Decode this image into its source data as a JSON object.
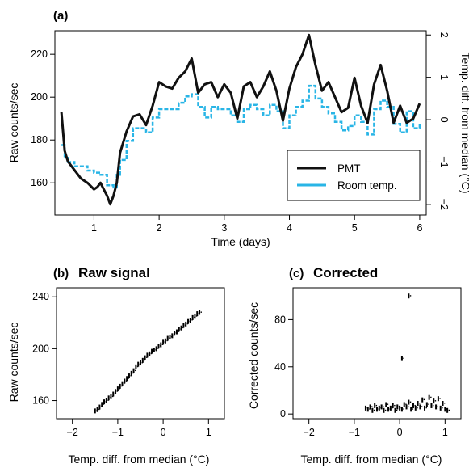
{
  "colors": {
    "pmt": "#111111",
    "room": "#29b5e6"
  },
  "chart_data": [
    {
      "type": "line",
      "panel_label": "(a)",
      "title": "",
      "xlabel": "Time (days)",
      "ylabel": "Raw counts/sec",
      "y2label": "Temp. diff. from median (°C)",
      "xlim": [
        0.4,
        6.1
      ],
      "ylim": [
        145,
        231
      ],
      "y2lim": [
        -2.25,
        2.1
      ],
      "xticks": [
        "1",
        "2",
        "3",
        "4",
        "5",
        "6"
      ],
      "yticks": [
        "160",
        "180",
        "200",
        "220"
      ],
      "y2ticks": [
        "−2",
        "−1",
        "0",
        "1",
        "2"
      ],
      "legend": "bottom-right",
      "series": [
        {
          "name": "PMT",
          "axis": "left",
          "x": [
            0.5,
            0.55,
            0.6,
            0.7,
            0.8,
            0.9,
            1.0,
            1.05,
            1.1,
            1.15,
            1.2,
            1.25,
            1.3,
            1.35,
            1.4,
            1.5,
            1.6,
            1.7,
            1.8,
            1.9,
            2.0,
            2.1,
            2.2,
            2.3,
            2.4,
            2.5,
            2.6,
            2.7,
            2.8,
            2.9,
            3.0,
            3.1,
            3.2,
            3.3,
            3.4,
            3.5,
            3.6,
            3.7,
            3.8,
            3.9,
            4.0,
            4.1,
            4.2,
            4.3,
            4.4,
            4.5,
            4.6,
            4.7,
            4.8,
            4.9,
            5.0,
            5.1,
            5.2,
            5.3,
            5.4,
            5.5,
            5.6,
            5.7,
            5.8,
            5.9,
            6.0
          ],
          "y": [
            193,
            175,
            170,
            166,
            162,
            160,
            157,
            158,
            160,
            157,
            154,
            150,
            154,
            160,
            174,
            184,
            191,
            192,
            187,
            196,
            207,
            205,
            204,
            209,
            212,
            218,
            202,
            206,
            207,
            200,
            206,
            202,
            190,
            205,
            207,
            200,
            205,
            212,
            203,
            189,
            204,
            214,
            220,
            229,
            215,
            203,
            207,
            200,
            193,
            195,
            209,
            196,
            188,
            206,
            215,
            203,
            188,
            196,
            188,
            190,
            197
          ]
        },
        {
          "name": "Room temp.",
          "axis": "right",
          "x": [
            0.5,
            0.55,
            0.6,
            0.7,
            0.8,
            0.9,
            1.0,
            1.1,
            1.2,
            1.3,
            1.35,
            1.4,
            1.5,
            1.6,
            1.7,
            1.8,
            1.9,
            2.0,
            2.1,
            2.2,
            2.3,
            2.4,
            2.5,
            2.6,
            2.7,
            2.8,
            2.9,
            3.0,
            3.1,
            3.2,
            3.3,
            3.4,
            3.5,
            3.6,
            3.7,
            3.8,
            3.9,
            4.0,
            4.1,
            4.2,
            4.3,
            4.4,
            4.5,
            4.6,
            4.7,
            4.8,
            4.9,
            5.0,
            5.1,
            5.2,
            5.3,
            5.4,
            5.5,
            5.6,
            5.7,
            5.8,
            5.9,
            6.0
          ],
          "y": [
            -0.6,
            -0.9,
            -1.0,
            -1.1,
            -1.1,
            -1.2,
            -1.25,
            -1.3,
            -1.55,
            -1.6,
            -1.3,
            -0.95,
            -0.5,
            -0.2,
            -0.2,
            -0.3,
            0.05,
            0.25,
            0.25,
            0.25,
            0.4,
            0.55,
            0.6,
            0.3,
            0.05,
            0.3,
            0.25,
            0.25,
            0.1,
            -0.05,
            0.25,
            0.35,
            0.25,
            0.1,
            0.35,
            0.2,
            -0.2,
            0.1,
            0.3,
            0.45,
            0.8,
            0.5,
            0.3,
            0.15,
            -0.05,
            -0.25,
            -0.15,
            0.1,
            -0.05,
            -0.35,
            0.25,
            0.45,
            0.3,
            -0.1,
            -0.3,
            0.2,
            -0.2,
            -0.1
          ]
        }
      ]
    },
    {
      "type": "scatter",
      "panel_label": "(b)",
      "title": "Raw signal",
      "xlabel": "Temp. diff. from median (°C)",
      "ylabel": "Raw counts/sec",
      "xlim": [
        -2.35,
        1.35
      ],
      "ylim": [
        146,
        247
      ],
      "xticks": [
        "−2",
        "−1",
        "0",
        "1"
      ],
      "yticks": [
        "160",
        "200",
        "240"
      ],
      "points": {
        "x": [
          -1.5,
          -1.45,
          -1.4,
          -1.35,
          -1.3,
          -1.25,
          -1.2,
          -1.15,
          -1.1,
          -1.05,
          -1.0,
          -0.95,
          -0.9,
          -0.85,
          -0.8,
          -0.75,
          -0.7,
          -0.65,
          -0.6,
          -0.55,
          -0.5,
          -0.45,
          -0.4,
          -0.35,
          -0.3,
          -0.25,
          -0.2,
          -0.15,
          -0.1,
          -0.05,
          0.0,
          0.05,
          0.1,
          0.15,
          0.2,
          0.25,
          0.3,
          0.35,
          0.4,
          0.45,
          0.5,
          0.55,
          0.6,
          0.65,
          0.7,
          0.75,
          0.8
        ],
        "y": [
          152,
          153,
          155,
          157,
          159,
          160,
          162,
          163,
          165,
          167,
          169,
          171,
          173,
          175,
          177,
          179,
          181,
          183,
          186,
          188,
          189,
          191,
          193,
          195,
          196,
          198,
          199,
          200,
          202,
          203,
          205,
          206,
          208,
          209,
          210,
          212,
          213,
          215,
          216,
          218,
          219,
          221,
          222,
          224,
          225,
          227,
          228
        ]
      }
    },
    {
      "type": "scatter",
      "panel_label": "(c)",
      "title": "Corrected",
      "xlabel": "Temp. diff. from median (°C)",
      "ylabel": "Corrected counts/sec",
      "xlim": [
        -2.35,
        1.35
      ],
      "ylim": [
        -4,
        107
      ],
      "xticks": [
        "−2",
        "−1",
        "0",
        "1"
      ],
      "yticks": [
        "0",
        "40",
        "80"
      ],
      "points": {
        "x": [
          -0.75,
          -0.7,
          -0.65,
          -0.6,
          -0.55,
          -0.5,
          -0.45,
          -0.4,
          -0.35,
          -0.3,
          -0.25,
          -0.2,
          -0.15,
          -0.1,
          -0.05,
          0.0,
          0.05,
          0.1,
          0.15,
          0.2,
          0.25,
          0.3,
          0.35,
          0.4,
          0.45,
          0.5,
          0.55,
          0.6,
          0.65,
          0.7,
          0.75,
          0.8,
          0.85,
          0.9,
          0.95,
          1.0,
          1.05,
          0.05,
          0.2
        ],
        "y": [
          5,
          4,
          6,
          3,
          7,
          4,
          5,
          6,
          3,
          8,
          4,
          5,
          7,
          3,
          6,
          5,
          4,
          8,
          6,
          10,
          4,
          7,
          5,
          9,
          6,
          12,
          5,
          8,
          14,
          7,
          11,
          6,
          13,
          5,
          9,
          4,
          3,
          47,
          100
        ]
      }
    }
  ]
}
